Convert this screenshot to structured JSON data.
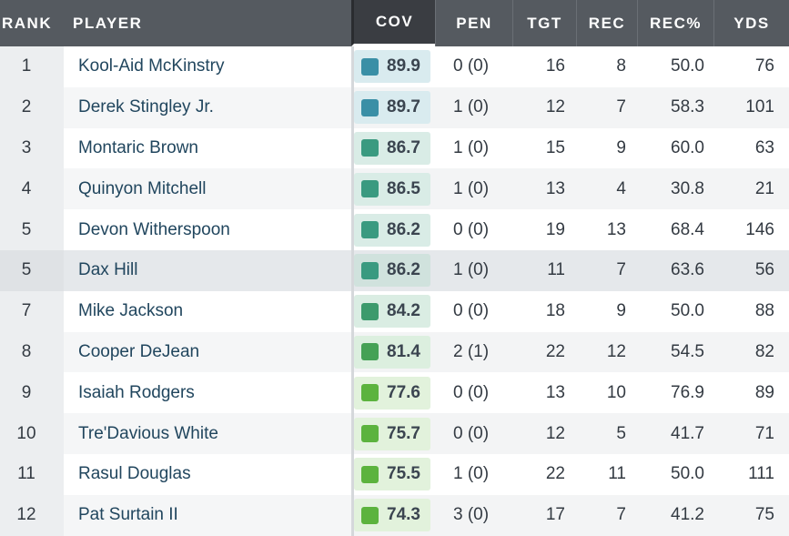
{
  "headers": {
    "rank": "RANK",
    "player": "PLAYER",
    "cov": "COV",
    "pen": "PEN",
    "tgt": "TGT",
    "rec": "REC",
    "rec_pct": "REC%",
    "yds": "YDS"
  },
  "grade_colors": {
    "teal": "#3a8fa6",
    "teal_green": "#3a9a80",
    "green_mid": "#3c9a64",
    "green": "#5cb33e"
  },
  "rows": [
    {
      "rank": "1",
      "player": "Kool-Aid McKinstry",
      "cov": "89.9",
      "pen": "0 (0)",
      "tgt": "16",
      "rec": "8",
      "rec_pct": "50.0",
      "yds": "76",
      "sq_color": "#3a8fa6",
      "box_bg": "#d9ebef"
    },
    {
      "rank": "2",
      "player": "Derek Stingley Jr.",
      "cov": "89.7",
      "pen": "1 (0)",
      "tgt": "12",
      "rec": "7",
      "rec_pct": "58.3",
      "yds": "101",
      "sq_color": "#3a8fa6",
      "box_bg": "#d9ebef"
    },
    {
      "rank": "3",
      "player": "Montaric Brown",
      "cov": "86.7",
      "pen": "1 (0)",
      "tgt": "15",
      "rec": "9",
      "rec_pct": "60.0",
      "yds": "63",
      "sq_color": "#3a9a80",
      "box_bg": "#d9ece6"
    },
    {
      "rank": "4",
      "player": "Quinyon Mitchell",
      "cov": "86.5",
      "pen": "1 (0)",
      "tgt": "13",
      "rec": "4",
      "rec_pct": "30.8",
      "yds": "21",
      "sq_color": "#3a9a80",
      "box_bg": "#d9ece6"
    },
    {
      "rank": "5",
      "player": "Devon Witherspoon",
      "cov": "86.2",
      "pen": "0 (0)",
      "tgt": "19",
      "rec": "13",
      "rec_pct": "68.4",
      "yds": "146",
      "sq_color": "#3a9a80",
      "box_bg": "#d9ece6"
    },
    {
      "rank": "5",
      "player": "Dax Hill",
      "cov": "86.2",
      "pen": "1 (0)",
      "tgt": "11",
      "rec": "7",
      "rec_pct": "63.6",
      "yds": "56",
      "sq_color": "#3a9a80",
      "box_bg": "#d0e2dd"
    },
    {
      "rank": "7",
      "player": "Mike Jackson",
      "cov": "84.2",
      "pen": "0 (0)",
      "tgt": "18",
      "rec": "9",
      "rec_pct": "50.0",
      "yds": "88",
      "sq_color": "#3c9a6c",
      "box_bg": "#daede3"
    },
    {
      "rank": "8",
      "player": "Cooper DeJean",
      "cov": "81.4",
      "pen": "2 (1)",
      "tgt": "22",
      "rec": "12",
      "rec_pct": "54.5",
      "yds": "82",
      "sq_color": "#45a155",
      "box_bg": "#dcefdf"
    },
    {
      "rank": "9",
      "player": "Isaiah Rodgers",
      "cov": "77.6",
      "pen": "0 (0)",
      "tgt": "13",
      "rec": "10",
      "rec_pct": "76.9",
      "yds": "89",
      "sq_color": "#5cb33e",
      "box_bg": "#e2f2dc"
    },
    {
      "rank": "10",
      "player": "Tre'Davious White",
      "cov": "75.7",
      "pen": "0 (0)",
      "tgt": "12",
      "rec": "5",
      "rec_pct": "41.7",
      "yds": "71",
      "sq_color": "#5cb33e",
      "box_bg": "#e2f2dc"
    },
    {
      "rank": "11",
      "player": "Rasul Douglas",
      "cov": "75.5",
      "pen": "1 (0)",
      "tgt": "22",
      "rec": "11",
      "rec_pct": "50.0",
      "yds": "111",
      "sq_color": "#5cb33e",
      "box_bg": "#e2f2dc"
    },
    {
      "rank": "12",
      "player": "Pat Surtain II",
      "cov": "74.3",
      "pen": "3 (0)",
      "tgt": "17",
      "rec": "7",
      "rec_pct": "41.2",
      "yds": "75",
      "sq_color": "#5cb33e",
      "box_bg": "#e2f2dc"
    }
  ]
}
